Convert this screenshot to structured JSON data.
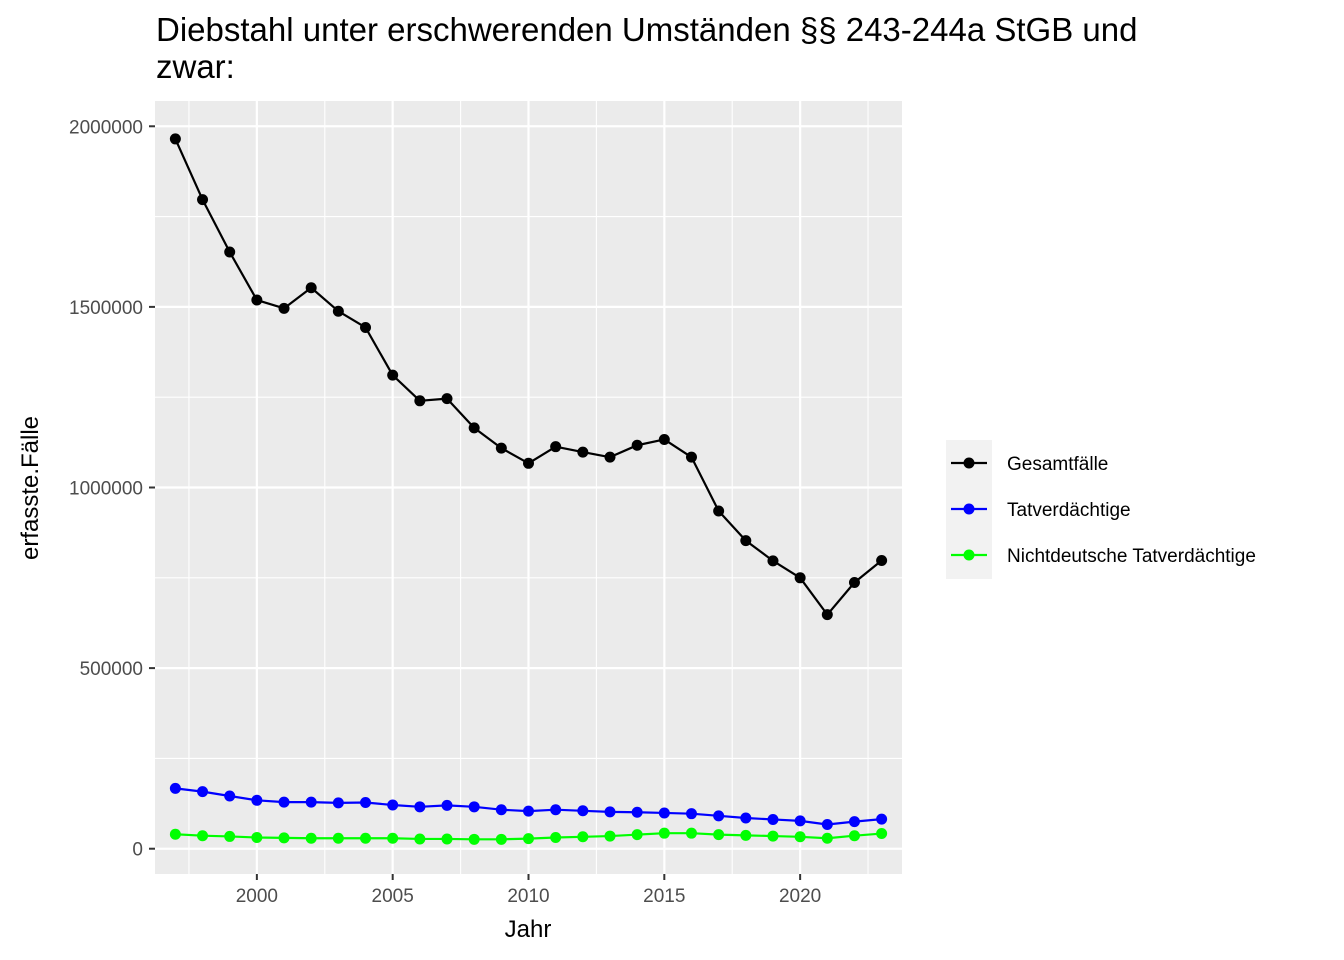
{
  "chart_data": {
    "type": "line",
    "title_lines": [
      "Diebstahl unter erschwerenden Umständen §§ 243-244a StGB und",
      "zwar:"
    ],
    "xlabel": "Jahr",
    "ylabel": "erfasste.Fälle",
    "xlim": [
      1996.25,
      2023.75
    ],
    "ylim": [
      -70000,
      2070000
    ],
    "x_ticks": [
      2000,
      2005,
      2010,
      2015,
      2020
    ],
    "x_tick_labels": [
      "2000",
      "2005",
      "2010",
      "2015",
      "2020"
    ],
    "y_ticks": [
      0,
      500000,
      1000000,
      1500000,
      2000000
    ],
    "y_tick_labels": [
      "0",
      "500000",
      "1000000",
      "1500000",
      "2000000"
    ],
    "grid": true,
    "legend_position": "right",
    "x": [
      1997,
      1998,
      1999,
      2000,
      2001,
      2002,
      2003,
      2004,
      2005,
      2006,
      2007,
      2008,
      2009,
      2010,
      2011,
      2012,
      2013,
      2014,
      2015,
      2016,
      2017,
      2018,
      2019,
      2020,
      2021,
      2022,
      2023
    ],
    "series": [
      {
        "name": "Gesamtfälle",
        "color": "#000000",
        "values": [
          1965000,
          1797000,
          1652000,
          1519000,
          1496000,
          1553000,
          1488000,
          1443000,
          1311000,
          1240000,
          1246000,
          1165000,
          1109000,
          1067000,
          1113000,
          1098000,
          1084000,
          1117000,
          1133000,
          1084000,
          935000,
          853000,
          797000,
          750000,
          648000,
          737000,
          798000
        ]
      },
      {
        "name": "Tatverdächtige",
        "color": "#0000ff",
        "values": [
          167000,
          158000,
          146000,
          134000,
          129000,
          129000,
          127000,
          128000,
          121000,
          116000,
          120000,
          116000,
          108000,
          104000,
          108000,
          105000,
          102000,
          101000,
          99000,
          97000,
          91000,
          85000,
          81000,
          77000,
          67000,
          75000,
          82000
        ]
      },
      {
        "name": "Nichtdeutsche Tatverdächtige",
        "color": "#00ff00",
        "values": [
          40000,
          36000,
          34000,
          31000,
          30000,
          29000,
          29000,
          29000,
          29000,
          27000,
          27000,
          26000,
          26000,
          28000,
          31000,
          33000,
          35000,
          39000,
          43000,
          43000,
          39000,
          37000,
          35000,
          33000,
          29000,
          36000,
          42000
        ]
      }
    ]
  }
}
